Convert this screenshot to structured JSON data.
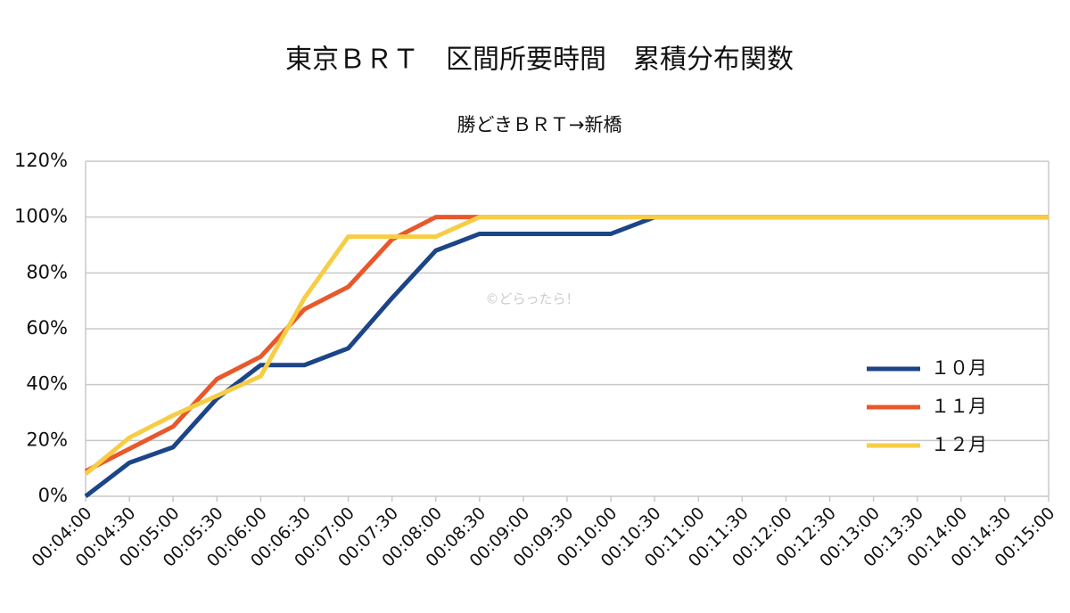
{
  "chart_data": {
    "type": "line",
    "title": "東京ＢＲＴ　区間所要時間　累積分布関数",
    "subtitle": "勝どきＢＲＴ→新橋",
    "annotation": "©どらったら！",
    "categories": [
      "00:04:00",
      "00:04:30",
      "00:05:00",
      "00:05:30",
      "00:06:00",
      "00:06:30",
      "00:07:00",
      "00:07:30",
      "00:08:00",
      "00:08:30",
      "00:09:00",
      "00:09:30",
      "00:10:00",
      "00:10:30",
      "00:11:00",
      "00:11:30",
      "00:12:00",
      "00:12:30",
      "00:13:00",
      "00:13:30",
      "00:14:00",
      "00:14:30",
      "00:15:00"
    ],
    "series": [
      {
        "name": "１０月",
        "color": "#1c4587",
        "values": [
          0,
          12,
          17.6,
          35,
          47,
          47,
          53,
          71,
          88,
          94,
          94,
          94,
          94,
          100,
          100,
          100,
          100,
          100,
          100,
          100,
          100,
          100,
          100
        ]
      },
      {
        "name": "１１月",
        "color": "#e8582a",
        "values": [
          9,
          17,
          25,
          42,
          50,
          67,
          75,
          92,
          100,
          100,
          100,
          100,
          100,
          100,
          100,
          100,
          100,
          100,
          100,
          100,
          100,
          100,
          100
        ]
      },
      {
        "name": "１２月",
        "color": "#f7cd45",
        "values": [
          8,
          21,
          29,
          36,
          43,
          71,
          93,
          93,
          93,
          100,
          100,
          100,
          100,
          100,
          100,
          100,
          100,
          100,
          100,
          100,
          100,
          100,
          100
        ]
      }
    ],
    "ylim": [
      0,
      120
    ],
    "yticks": [
      {
        "value": 0,
        "label": "0%"
      },
      {
        "value": 20,
        "label": "20%"
      },
      {
        "value": 40,
        "label": "40%"
      },
      {
        "value": 60,
        "label": "60%"
      },
      {
        "value": 80,
        "label": "80%"
      },
      {
        "value": 100,
        "label": "100%"
      },
      {
        "value": 120,
        "label": "120%"
      }
    ],
    "grid": true,
    "legend": "right"
  }
}
